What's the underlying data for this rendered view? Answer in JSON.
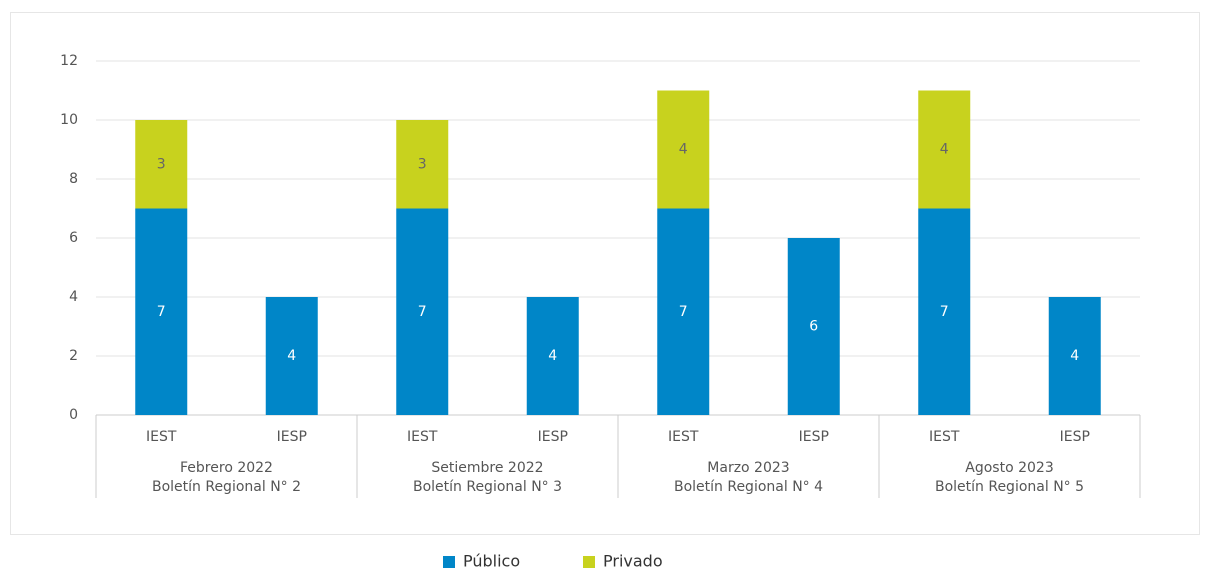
{
  "chart_data": {
    "type": "stacked-bar",
    "categories": [
      "IEST",
      "IESP",
      "IEST",
      "IESP",
      "IEST",
      "IESP",
      "IEST",
      "IESP"
    ],
    "groups": [
      [
        "Febrero 2022",
        "Boletín Regional N° 2"
      ],
      [
        "Setiembre 2022",
        "Boletín Regional N° 3"
      ],
      [
        "Marzo 2023",
        "Boletín Regional N° 4"
      ],
      [
        "Agosto 2023",
        "Boletín Regional N° 5"
      ]
    ],
    "series": [
      {
        "name": "Público",
        "color": "#0086c8",
        "values": [
          7,
          4,
          7,
          4,
          7,
          6,
          7,
          4
        ]
      },
      {
        "name": "Privado",
        "color": "#c8d21e",
        "values": [
          3,
          null,
          3,
          null,
          4,
          null,
          4,
          null
        ]
      }
    ],
    "ylim": [
      0,
      12
    ],
    "yticks": [
      0,
      2,
      4,
      6,
      8,
      10,
      12
    ],
    "grid": true,
    "legend": "bottom"
  }
}
